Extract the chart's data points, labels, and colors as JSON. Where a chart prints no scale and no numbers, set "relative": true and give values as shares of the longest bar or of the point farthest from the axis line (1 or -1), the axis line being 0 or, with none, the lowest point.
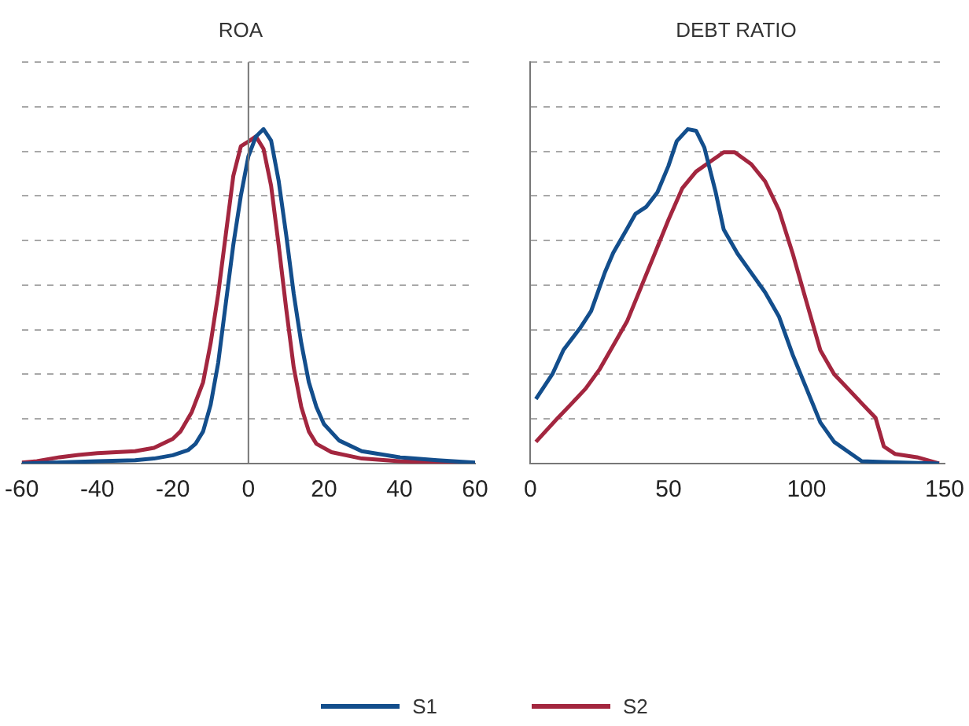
{
  "chart_data": [
    {
      "type": "line",
      "title": "ROA",
      "relative": true,
      "xlim": [
        -60,
        60
      ],
      "xticks": [
        -60,
        -40,
        -20,
        0,
        20,
        40,
        60
      ],
      "grid": "y",
      "legend": "bottom",
      "marker": "none",
      "ref_lines": [
        {
          "axis": "x",
          "value": 0,
          "color": "#777777"
        }
      ],
      "series": [
        {
          "name": "S1",
          "color": "#134e8c",
          "x": [
            -60,
            -40,
            -30,
            -25,
            -20,
            -16,
            -14,
            -12,
            -10,
            -8,
            -6,
            -4,
            -2,
            0,
            2,
            4,
            6,
            8,
            10,
            12,
            14,
            16,
            18,
            20,
            24,
            30,
            40,
            50,
            60
          ],
          "values": [
            0,
            0.007,
            0.01,
            0.015,
            0.025,
            0.04,
            0.059,
            0.096,
            0.176,
            0.301,
            0.478,
            0.654,
            0.801,
            0.919,
            0.978,
            1,
            0.966,
            0.846,
            0.684,
            0.507,
            0.36,
            0.243,
            0.169,
            0.118,
            0.069,
            0.037,
            0.019,
            0.01,
            0.003
          ]
        },
        {
          "name": "S2",
          "color": "#a3263f",
          "x": [
            -60,
            -56,
            -50,
            -45,
            -40,
            -30,
            -25,
            -20,
            -18,
            -15,
            -12,
            -10,
            -8,
            -6,
            -4,
            -2,
            0,
            2,
            4,
            6,
            8,
            10,
            12,
            14,
            16,
            18,
            22,
            30,
            40,
            60
          ],
          "values": [
            0.003,
            0.007,
            0.019,
            0.026,
            0.031,
            0.037,
            0.047,
            0.074,
            0.096,
            0.154,
            0.243,
            0.36,
            0.507,
            0.684,
            0.86,
            0.949,
            0.963,
            0.978,
            0.941,
            0.831,
            0.654,
            0.463,
            0.287,
            0.169,
            0.096,
            0.059,
            0.034,
            0.015,
            0.007,
            0
          ]
        }
      ]
    },
    {
      "type": "line",
      "title": "DEBT RATIO",
      "relative": true,
      "xlim": [
        0,
        150
      ],
      "xticks": [
        0,
        50,
        100,
        150
      ],
      "grid": "y",
      "legend": "bottom",
      "marker": "none",
      "series": [
        {
          "name": "S1",
          "color": "#134e8c",
          "x": [
            2,
            8,
            12,
            18,
            22,
            27,
            30,
            35,
            38,
            42,
            46,
            50,
            53,
            57,
            60,
            63,
            67,
            70,
            75,
            80,
            85,
            90,
            95,
            100,
            105,
            110,
            115,
            120,
            130,
            148
          ],
          "values": [
            0.193,
            0.268,
            0.34,
            0.405,
            0.456,
            0.572,
            0.63,
            0.702,
            0.746,
            0.768,
            0.811,
            0.89,
            0.964,
            1,
            0.995,
            0.945,
            0.815,
            0.7,
            0.628,
            0.57,
            0.512,
            0.44,
            0.325,
            0.224,
            0.123,
            0.065,
            0.036,
            0.007,
            0.004,
            0
          ]
        },
        {
          "name": "S2",
          "color": "#a3263f",
          "x": [
            2,
            10,
            15,
            20,
            25,
            30,
            35,
            40,
            45,
            50,
            55,
            60,
            65,
            70,
            74,
            80,
            85,
            90,
            95,
            100,
            105,
            110,
            115,
            120,
            125,
            128,
            132,
            140,
            148
          ],
          "values": [
            0.065,
            0.137,
            0.18,
            0.224,
            0.281,
            0.353,
            0.425,
            0.526,
            0.627,
            0.729,
            0.823,
            0.873,
            0.902,
            0.931,
            0.931,
            0.895,
            0.844,
            0.758,
            0.628,
            0.483,
            0.339,
            0.267,
            0.224,
            0.18,
            0.137,
            0.051,
            0.029,
            0.019,
            0
          ]
        }
      ]
    }
  ]
}
